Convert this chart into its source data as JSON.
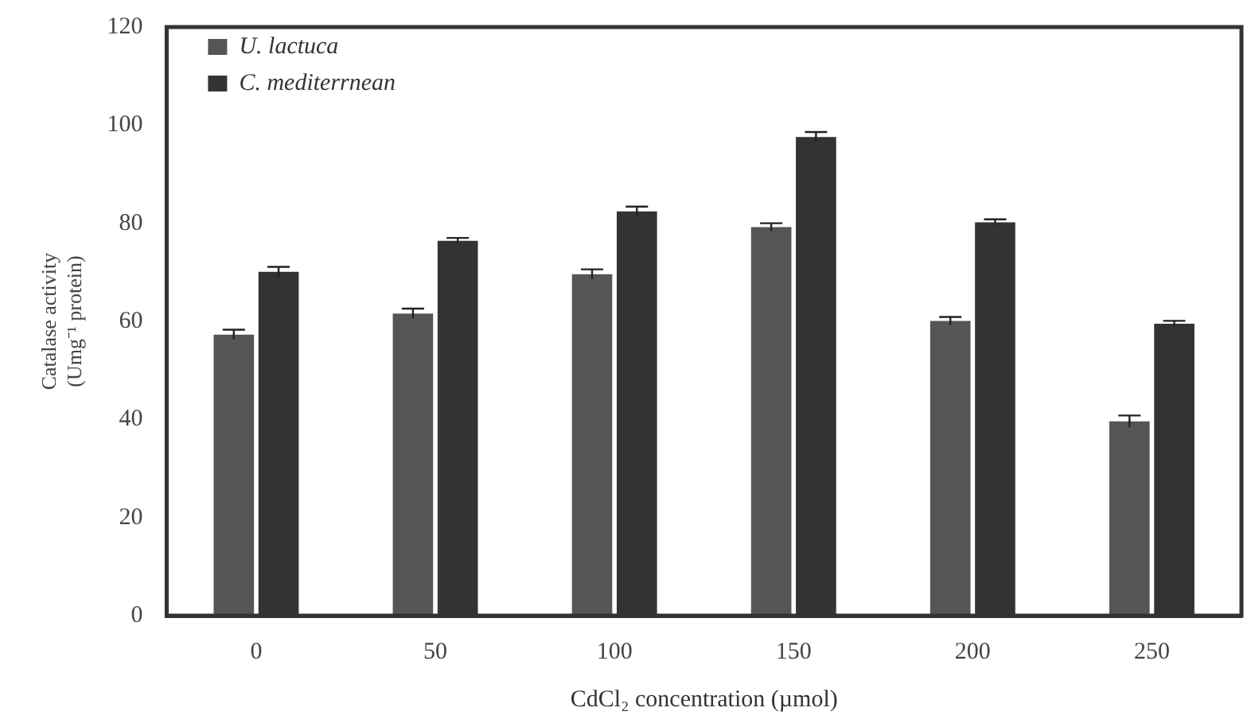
{
  "chart_data": {
    "type": "bar",
    "xlabel": "CdCl₂ concentration (µmol)",
    "ylabel": "Catalase activity\n(Umg⁻¹ protein)",
    "categories": [
      "0",
      "50",
      "100",
      "150",
      "200",
      "250"
    ],
    "series": [
      {
        "name": "U. lactuca",
        "color": "#555555",
        "values": [
          57.3,
          61.6,
          69.6,
          79.2,
          60.1,
          39.6
        ],
        "errors": [
          1,
          1,
          1,
          0.8,
          0.8,
          1.2
        ]
      },
      {
        "name": "C. mediterrnean",
        "color": "#333333",
        "values": [
          70.1,
          76.4,
          82.4,
          97.6,
          80.2,
          59.5
        ],
        "errors": [
          1,
          0.6,
          1,
          1,
          0.6,
          0.6
        ]
      }
    ],
    "ylim": [
      0,
      120
    ],
    "yticks": [
      0,
      20,
      40,
      60,
      80,
      100,
      120
    ],
    "grid": false,
    "legend": "top left"
  }
}
